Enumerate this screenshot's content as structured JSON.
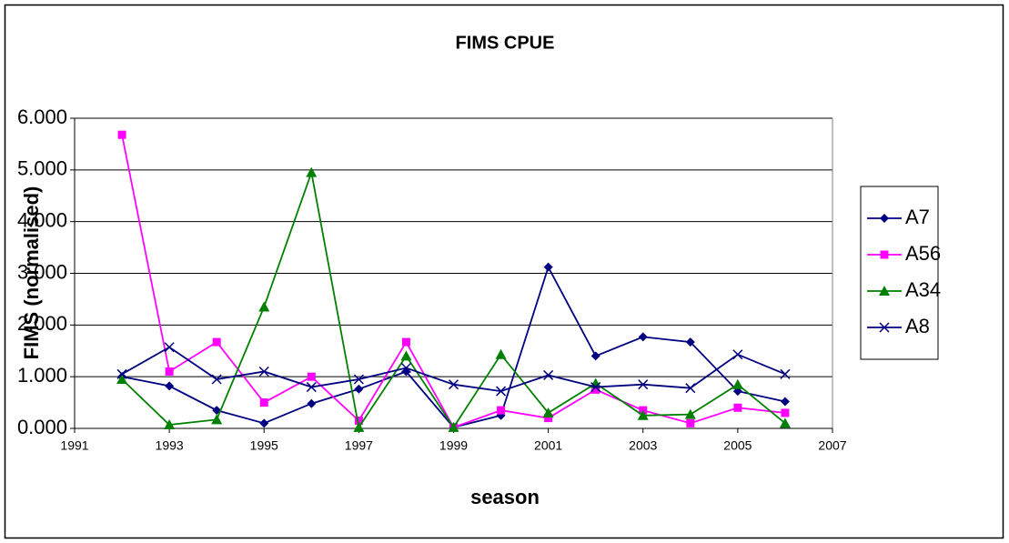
{
  "chart_data": {
    "type": "line",
    "title": "FIMS CPUE",
    "xlabel": "season",
    "ylabel": "FIMS (normalised)",
    "x": [
      1992,
      1993,
      1994,
      1995,
      1996,
      1997,
      1998,
      1999,
      2000,
      2001,
      2002,
      2003,
      2004,
      2005,
      2006
    ],
    "xlim": [
      1991,
      2007
    ],
    "xticks": [
      1991,
      1993,
      1995,
      1997,
      1999,
      2001,
      2003,
      2005,
      2007
    ],
    "ylim": [
      0,
      6
    ],
    "yticks": [
      {
        "value": 0,
        "label": "0.000"
      },
      {
        "value": 1,
        "label": "1.000"
      },
      {
        "value": 2,
        "label": "2.000"
      },
      {
        "value": 3,
        "label": "3.000"
      },
      {
        "value": 4,
        "label": "4.000"
      },
      {
        "value": 5,
        "label": "5.000"
      },
      {
        "value": 6,
        "label": "6.000"
      }
    ],
    "grid": true,
    "legend": "right",
    "series": [
      {
        "name": "A7",
        "color": "#000080",
        "marker": "diamond",
        "values": [
          1.0,
          0.82,
          0.35,
          0.1,
          0.48,
          0.76,
          1.1,
          0.02,
          0.25,
          3.12,
          1.4,
          1.77,
          1.67,
          0.72,
          0.52
        ]
      },
      {
        "name": "A56",
        "color": "#ff00ff",
        "marker": "square",
        "values": [
          5.68,
          1.1,
          1.67,
          0.5,
          1.0,
          0.15,
          1.67,
          0.02,
          0.35,
          0.2,
          0.75,
          0.35,
          0.1,
          0.4,
          0.3
        ]
      },
      {
        "name": "A34",
        "color": "#008000",
        "marker": "triangle",
        "values": [
          0.95,
          0.07,
          0.17,
          2.35,
          4.95,
          0.02,
          1.4,
          0.02,
          1.43,
          0.3,
          0.87,
          0.25,
          0.27,
          0.85,
          0.1
        ]
      },
      {
        "name": "A8",
        "color": "#000080",
        "marker": "x",
        "values": [
          1.05,
          1.57,
          0.95,
          1.1,
          0.8,
          0.95,
          1.17,
          0.85,
          0.72,
          1.03,
          0.8,
          0.85,
          0.78,
          1.43,
          1.05
        ]
      }
    ]
  }
}
